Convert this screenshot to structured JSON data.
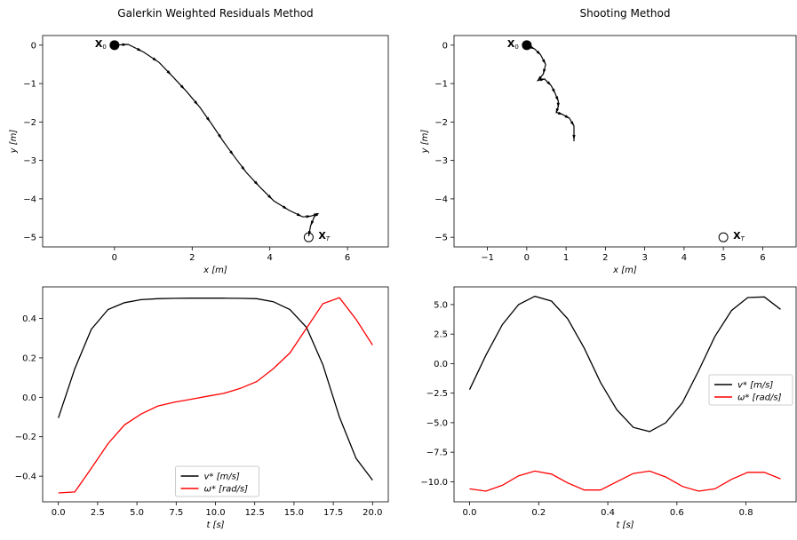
{
  "chart_data": [
    {
      "id": "p1",
      "type": "line",
      "title": "Galerkin Weighted Residuals Method",
      "xlabel": "x [m]",
      "ylabel": "y [m]",
      "xlim": [
        -1.85,
        7.05
      ],
      "ylim": [
        -5.25,
        0.25
      ],
      "xticks": [
        0,
        2,
        4,
        6
      ],
      "yticks": [
        0,
        -1,
        -2,
        -3,
        -4,
        -5
      ],
      "grid": false,
      "trajectory": {
        "x": [
          0.0,
          0.35,
          0.75,
          1.15,
          1.5,
          1.85,
          2.2,
          2.5,
          2.8,
          3.1,
          3.4,
          3.75,
          4.1,
          4.5,
          4.85,
          5.05,
          5.25,
          5.15,
          5.05,
          5.0
        ],
        "y": [
          0.0,
          0.02,
          -0.18,
          -0.45,
          -0.82,
          -1.2,
          -1.62,
          -2.05,
          -2.5,
          -2.92,
          -3.32,
          -3.7,
          -4.05,
          -4.3,
          -4.47,
          -4.45,
          -4.38,
          -4.45,
          -4.7,
          -4.97
        ]
      },
      "start": {
        "x": 0,
        "y": 0,
        "label": "X",
        "sub": "0"
      },
      "end": {
        "x": 5,
        "y": -5,
        "label": "X",
        "sub": "T"
      },
      "colors": {
        "trajectory": "#000000"
      }
    },
    {
      "id": "p2",
      "type": "line",
      "title": "Shooting Method",
      "xlabel": "x [m]",
      "ylabel": "y [m]",
      "xlim": [
        -1.85,
        6.85
      ],
      "ylim": [
        -5.25,
        0.25
      ],
      "xticks": [
        -1,
        0,
        1,
        2,
        3,
        4,
        5,
        6
      ],
      "yticks": [
        0,
        -1,
        -2,
        -3,
        -4,
        -5
      ],
      "grid": false,
      "trajectory": {
        "x": [
          0.0,
          0.2,
          0.35,
          0.48,
          0.42,
          0.28,
          0.45,
          0.62,
          0.72,
          0.8,
          0.8,
          0.75,
          0.9,
          1.08,
          1.2,
          1.2
        ],
        "y": [
          0.0,
          -0.1,
          -0.25,
          -0.5,
          -0.75,
          -0.92,
          -0.88,
          -1.05,
          -1.25,
          -1.45,
          -1.6,
          -1.75,
          -1.8,
          -1.9,
          -2.1,
          -2.5
        ]
      },
      "start": {
        "x": 0,
        "y": 0,
        "label": "X",
        "sub": "0"
      },
      "end": {
        "x": 5,
        "y": -5,
        "label": "X",
        "sub": "T"
      },
      "colors": {
        "trajectory": "#000000"
      }
    },
    {
      "id": "p3",
      "type": "line",
      "xlabel": "t [s]",
      "ylabel": "",
      "xlim": [
        -1.0,
        21.0
      ],
      "ylim": [
        -0.53,
        0.56
      ],
      "xticks": [
        0.0,
        2.5,
        5.0,
        7.5,
        10.0,
        12.5,
        15.0,
        17.5,
        20.0
      ],
      "xticklabels": [
        "0.0",
        "2.5",
        "5.0",
        "7.5",
        "10.0",
        "12.5",
        "15.0",
        "17.5",
        "20.0"
      ],
      "yticks": [
        -0.4,
        -0.2,
        0.0,
        0.2,
        0.4
      ],
      "yticklabels": [
        "−0.4",
        "−0.2",
        "0.0",
        "0.2",
        "0.4"
      ],
      "grid": false,
      "legend": "lower-center",
      "x": [
        0.0,
        1.05,
        2.1,
        3.16,
        4.21,
        5.26,
        6.32,
        7.37,
        8.42,
        9.47,
        10.53,
        11.58,
        12.63,
        13.68,
        14.74,
        15.79,
        16.84,
        17.89,
        18.95,
        20.0
      ],
      "series": [
        {
          "name": "v* [m/s]",
          "color": "#000000",
          "values": [
            -0.105,
            0.145,
            0.345,
            0.445,
            0.48,
            0.495,
            0.5,
            0.502,
            0.503,
            0.503,
            0.503,
            0.502,
            0.5,
            0.485,
            0.445,
            0.355,
            0.165,
            -0.1,
            -0.31,
            -0.42
          ]
        },
        {
          "name": "ω* [rad/s]",
          "color": "#ff0000",
          "values": [
            -0.485,
            -0.48,
            -0.36,
            -0.235,
            -0.14,
            -0.085,
            -0.045,
            -0.025,
            -0.01,
            0.005,
            0.02,
            0.045,
            0.08,
            0.145,
            0.225,
            0.35,
            0.475,
            0.505,
            0.395,
            0.265
          ]
        }
      ]
    },
    {
      "id": "p4",
      "type": "line",
      "xlabel": "t [s]",
      "ylabel": "",
      "xlim": [
        -0.045,
        0.945
      ],
      "ylim": [
        -11.7,
        6.5
      ],
      "xticks": [
        0.0,
        0.2,
        0.4,
        0.6,
        0.8
      ],
      "xticklabels": [
        "0.0",
        "0.2",
        "0.4",
        "0.6",
        "0.8"
      ],
      "yticks": [
        5.0,
        2.5,
        0.0,
        -2.5,
        -5.0,
        -7.5,
        -10.0
      ],
      "yticklabels": [
        "5.0",
        "2.5",
        "0.0",
        "−2.5",
        "−5.0",
        "−7.5",
        "−10.0"
      ],
      "grid": false,
      "legend": "center-right",
      "x": [
        0.0,
        0.047,
        0.095,
        0.142,
        0.189,
        0.237,
        0.284,
        0.332,
        0.379,
        0.426,
        0.474,
        0.521,
        0.568,
        0.616,
        0.663,
        0.71,
        0.758,
        0.805,
        0.853,
        0.9
      ],
      "series": [
        {
          "name": "v* [m/s]",
          "color": "#000000",
          "values": [
            -2.2,
            0.7,
            3.3,
            5.0,
            5.7,
            5.3,
            3.8,
            1.3,
            -1.6,
            -3.9,
            -5.4,
            -5.75,
            -5.0,
            -3.3,
            -0.6,
            2.3,
            4.5,
            5.6,
            5.65,
            4.6
          ]
        },
        {
          "name": "ω* [rad/s]",
          "color": "#ff0000",
          "values": [
            -10.6,
            -10.8,
            -10.3,
            -9.5,
            -9.1,
            -9.35,
            -10.1,
            -10.7,
            -10.7,
            -10.0,
            -9.3,
            -9.1,
            -9.6,
            -10.4,
            -10.8,
            -10.6,
            -9.8,
            -9.2,
            -9.2,
            -9.75
          ]
        }
      ]
    }
  ]
}
